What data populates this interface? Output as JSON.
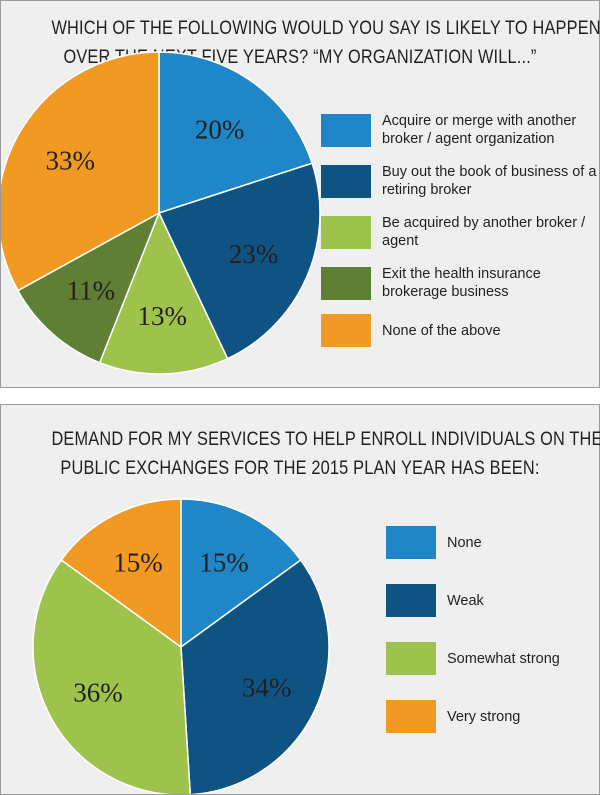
{
  "colors": {
    "blue": "#1f86c8",
    "dark_blue": "#0f5382",
    "light_green": "#9dc34c",
    "dark_green": "#5f7f35",
    "orange": "#f09a23"
  },
  "chart_data": [
    {
      "type": "pie",
      "title": "WHICH OF THE FOLLOWING WOULD YOU SAY IS LIKELY TO HAPPEN OVER THE NEXT FIVE YEARS? “MY ORGANIZATION WILL...”",
      "title_lines": [
        "WHICH OF THE FOLLOWING WOULD YOU SAY IS LIKELY TO HAPPEN",
        "OVER THE NEXT FIVE YEARS? “MY ORGANIZATION WILL...”"
      ],
      "legend_position": "right",
      "slices": [
        {
          "label": "Acquire or merge with another broker / agent organization",
          "legend_lines": [
            "Acquire or merge with another",
            "broker / agent organization"
          ],
          "value": 20,
          "value_label": "20%",
          "color": "#1f86c8",
          "label_color": "#ffffff"
        },
        {
          "label": "Buy out the book of business of a retiring broker",
          "legend_lines": [
            "Buy out the book of business of a",
            "retiring broker"
          ],
          "value": 23,
          "value_label": "23%",
          "color": "#0f5382",
          "label_color": "#ffffff"
        },
        {
          "label": "Be acquired by another broker / agent",
          "legend_lines": [
            "Be acquired by another broker /",
            "agent"
          ],
          "value": 13,
          "value_label": "13%",
          "color": "#9dc34c",
          "label_color": "#231f20"
        },
        {
          "label": "Exit the health insurance brokerage business",
          "legend_lines": [
            "Exit the health insurance",
            "brokerage business"
          ],
          "value": 11,
          "value_label": "11%",
          "color": "#5f7f35",
          "label_color": "#ffffff"
        },
        {
          "label": "None of the above",
          "legend_lines": [
            "None of the above"
          ],
          "value": 33,
          "value_label": "33%",
          "color": "#f09a23",
          "label_color": "#ffffff"
        }
      ]
    },
    {
      "type": "pie",
      "title": "DEMAND FOR MY SERVICES TO HELP ENROLL INDIVIDUALS ON THE PUBLIC EXCHANGES FOR THE 2015 PLAN YEAR HAS BEEN:",
      "title_lines": [
        "DEMAND FOR MY SERVICES TO HELP ENROLL INDIVIDUALS ON THE",
        "PUBLIC EXCHANGES FOR THE 2015 PLAN YEAR HAS BEEN:"
      ],
      "legend_position": "right",
      "slices": [
        {
          "label": "None",
          "legend_lines": [
            "None"
          ],
          "value": 15,
          "value_label": "15%",
          "color": "#1f86c8",
          "label_color": "#ffffff"
        },
        {
          "label": "Weak",
          "legend_lines": [
            "Weak"
          ],
          "value": 34,
          "value_label": "34%",
          "color": "#0f5382",
          "label_color": "#ffffff"
        },
        {
          "label": "Somewhat strong",
          "legend_lines": [
            "Somewhat strong"
          ],
          "value": 36,
          "value_label": "36%",
          "color": "#9dc34c",
          "label_color": "#231f20"
        },
        {
          "label": "Very strong",
          "legend_lines": [
            "Very strong"
          ],
          "value": 15,
          "value_label": "15%",
          "color": "#f09a23",
          "label_color": "#ffffff"
        }
      ]
    }
  ]
}
